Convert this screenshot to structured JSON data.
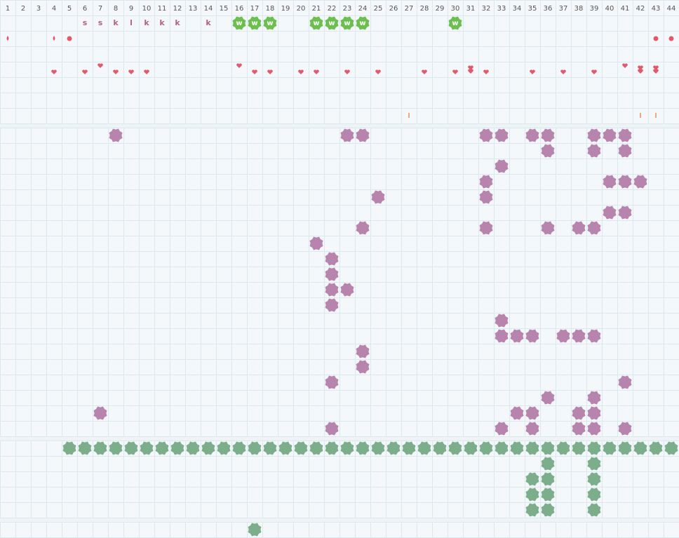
{
  "header": {
    "days": [
      1,
      2,
      3,
      4,
      5,
      6,
      7,
      8,
      9,
      10,
      11,
      12,
      13,
      14,
      15,
      16,
      17,
      18,
      19,
      20,
      21,
      22,
      23,
      24,
      25,
      26,
      27,
      28,
      29,
      30,
      31,
      32,
      33,
      34,
      35,
      36,
      37,
      38,
      39,
      40,
      41,
      42,
      43,
      44
    ]
  },
  "labels": [
    null,
    null,
    null,
    null,
    null,
    "s",
    "s",
    "k",
    "l",
    "k",
    "k",
    "k",
    null,
    "k",
    null,
    null,
    null,
    null,
    null,
    null,
    null,
    null,
    null,
    null,
    null,
    null,
    null,
    null,
    null,
    null,
    null,
    null,
    null,
    null,
    null,
    null,
    null,
    null,
    null,
    null,
    null,
    null,
    null,
    null
  ],
  "badges": [
    null,
    null,
    null,
    null,
    null,
    null,
    null,
    null,
    null,
    null,
    null,
    null,
    null,
    null,
    null,
    "w",
    "w",
    "w",
    null,
    null,
    "w",
    "w",
    "w",
    "w",
    null,
    null,
    null,
    null,
    null,
    "w",
    null,
    null,
    null,
    null,
    null,
    null,
    null,
    null,
    null,
    null,
    null,
    null,
    null,
    null
  ]
}
